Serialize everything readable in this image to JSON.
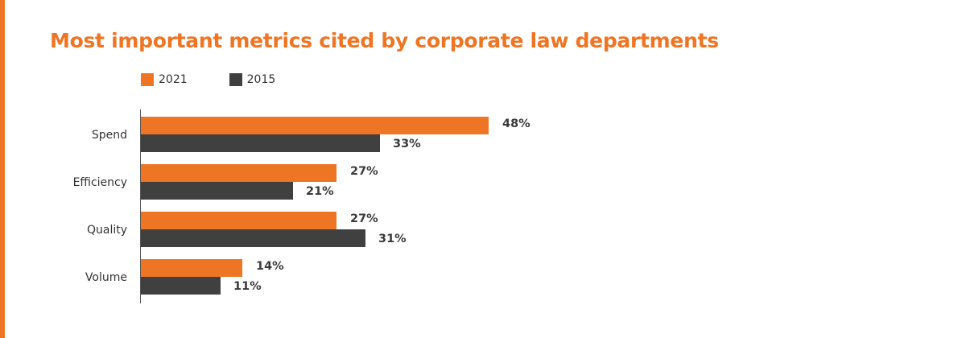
{
  "colors": {
    "accent": "#EE7523",
    "series_2021": "#EE7523",
    "series_2015": "#404040",
    "title": "#EE7523",
    "axis": "#555555"
  },
  "chart_data": {
    "type": "bar",
    "orientation": "horizontal",
    "title": "Most important metrics cited by corporate law departments",
    "categories": [
      "Spend",
      "Efficiency",
      "Quality",
      "Volume"
    ],
    "series": [
      {
        "name": "2021",
        "values": [
          48,
          27,
          27,
          14
        ],
        "labels": [
          "48%",
          "27%",
          "27%",
          "14%"
        ]
      },
      {
        "name": "2015",
        "values": [
          33,
          21,
          31,
          11
        ],
        "labels": [
          "33%",
          "21%",
          "31%",
          "11%"
        ]
      }
    ],
    "xlim": [
      0,
      100
    ],
    "unit": "%",
    "grid": false,
    "legend": "top-left",
    "xlabel": "",
    "ylabel": ""
  }
}
